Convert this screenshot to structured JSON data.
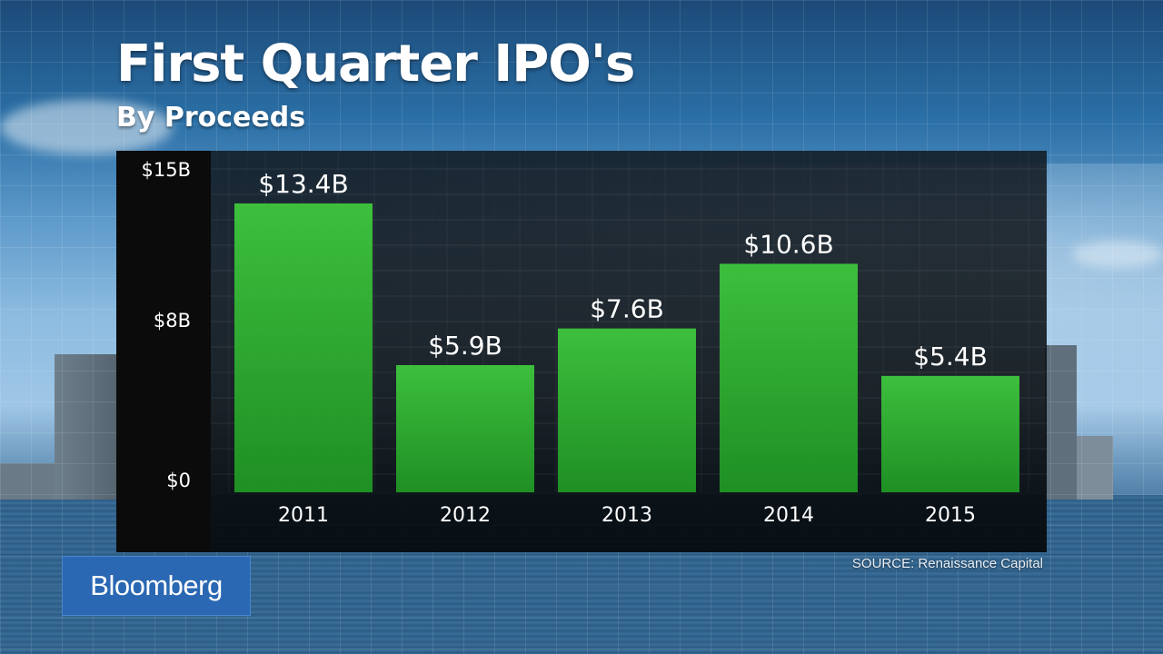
{
  "header": {
    "title": "First Quarter IPO's",
    "subtitle": "By Proceeds"
  },
  "footer": {
    "source": "SOURCE: Renaissance Capital",
    "logo_text": "Bloomberg"
  },
  "colors": {
    "bar": "#3dbf3d",
    "bar_dark": "#1f8f24",
    "panel": "#0b0b0b",
    "text": "#ffffff",
    "logo_bg": "#2a68b3"
  },
  "chart_data": {
    "type": "bar",
    "title": "First Quarter IPO's",
    "subtitle": "By Proceeds",
    "xlabel": "",
    "ylabel": "",
    "categories": [
      "2011",
      "2012",
      "2013",
      "2014",
      "2015"
    ],
    "values": [
      13.4,
      5.9,
      7.6,
      10.6,
      5.4
    ],
    "data_labels": [
      "$13.4B",
      "$5.9B",
      "$7.6B",
      "$10.6B",
      "$5.4B"
    ],
    "ylim": [
      0,
      15
    ],
    "yticks": [
      0,
      8,
      15
    ],
    "ytick_labels": [
      "$0",
      "$8B",
      "$15B"
    ],
    "grid": true,
    "source": "SOURCE: Renaissance Capital"
  }
}
